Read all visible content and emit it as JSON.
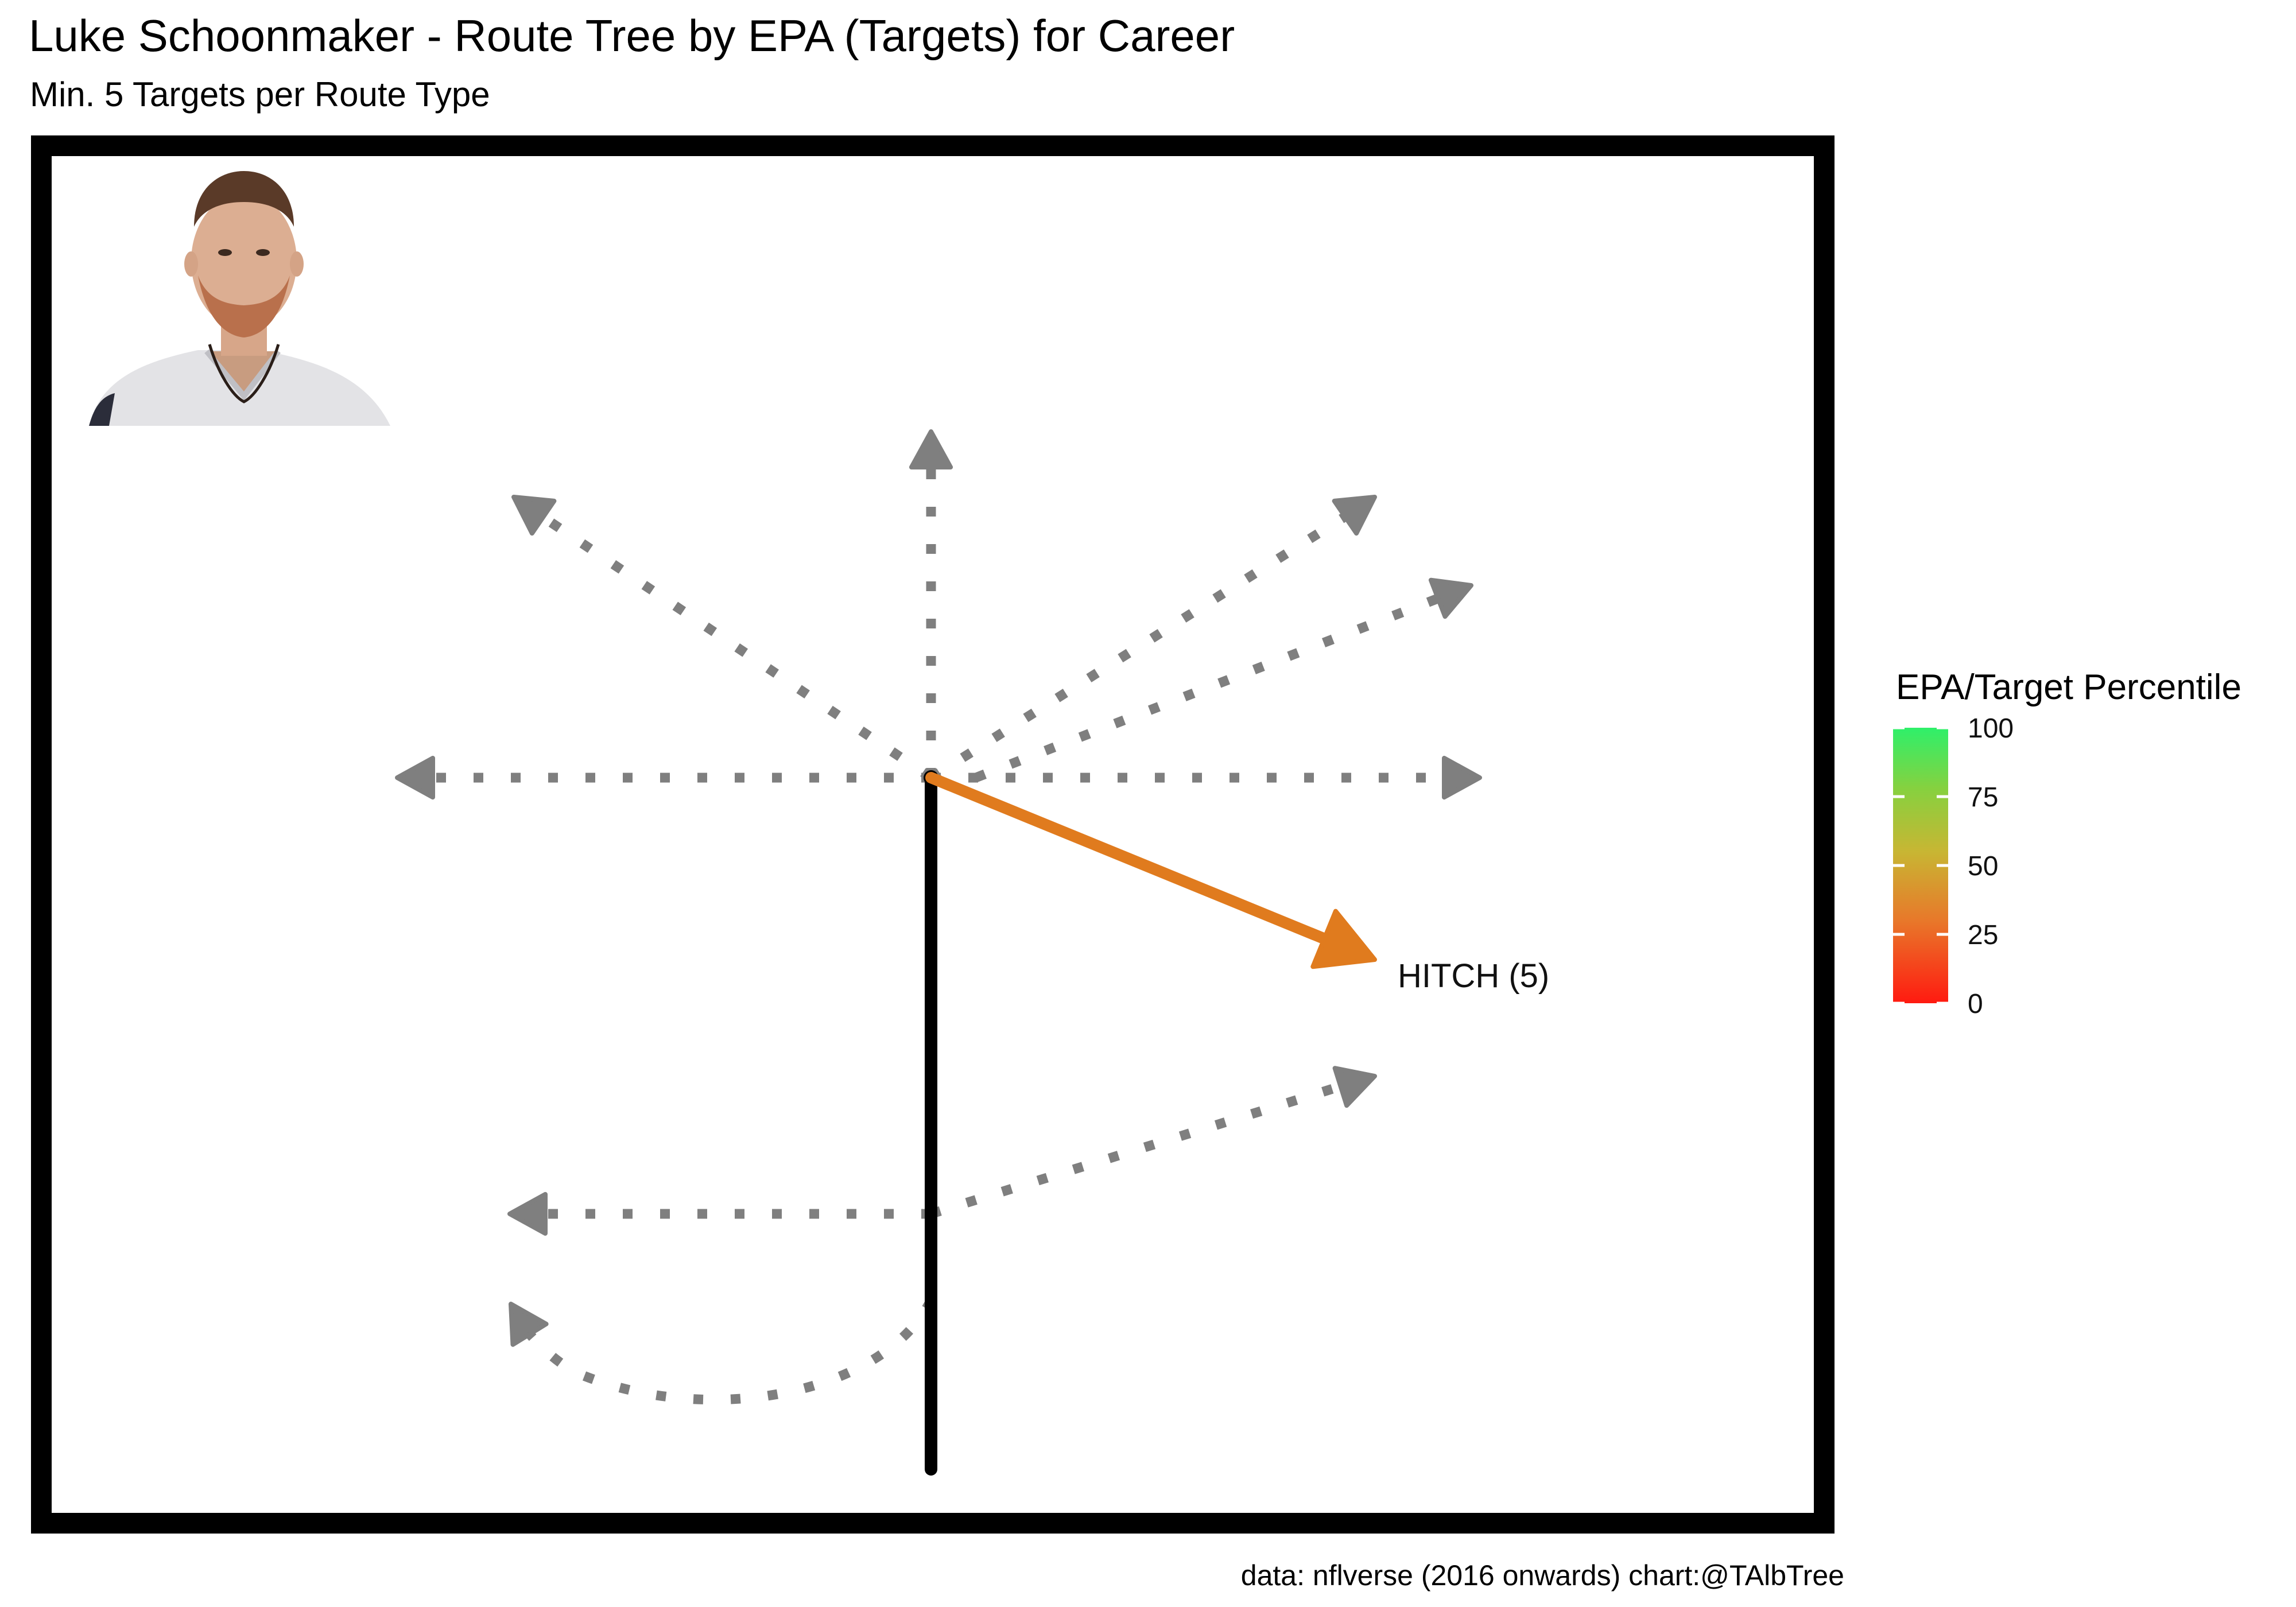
{
  "chart_data": {
    "type": "route-tree",
    "title": "Luke Schoonmaker - Route Tree by EPA (Targets) for Career",
    "subtitle": "Min. 5 Targets per Route Type",
    "caption": "data: nflverse (2016 onwards)  chart:@TAlbTree",
    "legend": {
      "title": "EPA/Target Percentile",
      "ticks": [
        100,
        75,
        50,
        25,
        0
      ],
      "gradient_colors": [
        "#ff1a10",
        "#e8782a",
        "#c8b633",
        "#86d13f",
        "#2ef06a"
      ]
    },
    "qualified_routes": [
      {
        "route": "HITCH",
        "targets": 5,
        "label": "HITCH (5)",
        "color": "#e07b1e"
      }
    ],
    "unqualified_color": "#7f7f7f",
    "stem_color": "#000000"
  },
  "player_photo": {
    "description_icon": "player-headshot"
  }
}
